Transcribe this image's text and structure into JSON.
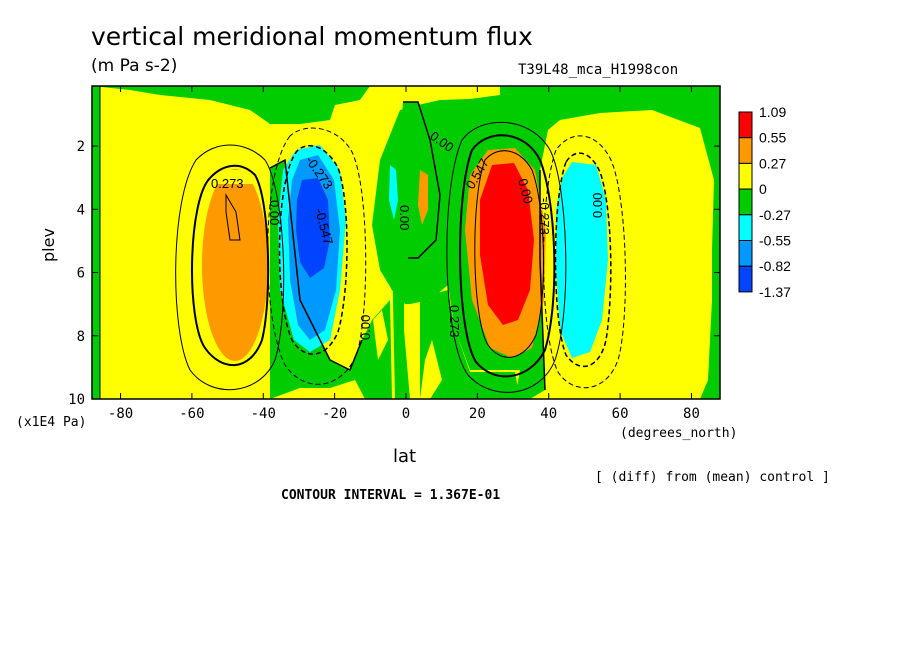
{
  "header": {
    "title": "vertical meridional momentum flux",
    "units": "(m Pa s-2)",
    "run": "T39L48_mca_H1998con"
  },
  "footer": {
    "y_unit": "(x1E4 Pa)",
    "x_unit": "(degrees_north)",
    "x_label": "lat",
    "diff_note": "[ (diff) from (mean) control ]",
    "contour_interval": "CONTOUR INTERVAL = 1.367E-01"
  },
  "chart_data": {
    "type": "heatmap",
    "title": "vertical meridional momentum flux",
    "xlabel": "lat",
    "ylabel": "plev",
    "xlim": [
      -88,
      88
    ],
    "ylim": [
      10,
      0.1
    ],
    "y_inverted": true,
    "x_ticks": [
      -80,
      -60,
      -40,
      -20,
      0,
      20,
      40,
      60,
      80
    ],
    "x_tick_labels": [
      "-80",
      "-60",
      "-40",
      "-20",
      "0",
      "20",
      "40",
      "60",
      "80"
    ],
    "y_ticks": [
      2,
      4,
      6,
      8,
      10
    ],
    "y_tick_labels": [
      "2",
      "4",
      "6",
      "8",
      "10"
    ],
    "colorbar": {
      "levels": [
        "1.09",
        "0.55",
        "0.27",
        "0",
        "-0.27",
        "-0.55",
        "-0.82",
        "-1.37"
      ],
      "colors": [
        "#ff0000",
        "#ff9900",
        "#ffff00",
        "#00cc00",
        "#00ffff",
        "#0099ff",
        "#0044ff"
      ]
    },
    "features": [
      {
        "name": "sh-positive-cell",
        "lat": -50,
        "plev": 4.5,
        "peak": 0.41,
        "color": "#ff9900"
      },
      {
        "name": "sh-negative-cell",
        "lat": -28,
        "plev": 4.2,
        "peak": -1.0,
        "color": "#0044ff"
      },
      {
        "name": "nh-positive-cell",
        "lat": 28,
        "plev": 4.5,
        "peak": 0.82,
        "color": "#ff0000"
      },
      {
        "name": "nh-negative-cell",
        "lat": 48,
        "plev": 4.5,
        "peak": -0.35,
        "color": "#00ffff"
      }
    ],
    "contour_labels": [
      "0.273",
      "0.00",
      "-0.273",
      "-0.547",
      "0.00",
      "0.00",
      "0.00",
      "0.273",
      "0.547",
      "0.00",
      "-0.273",
      "0.00"
    ],
    "colorbar_label": "",
    "contour_interval": 0.1367
  }
}
